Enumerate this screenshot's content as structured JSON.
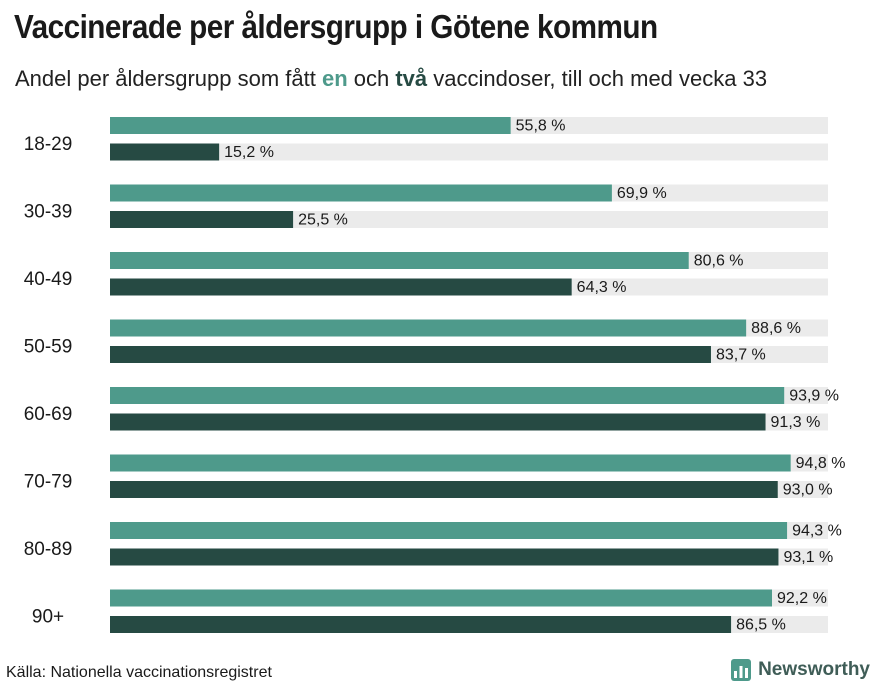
{
  "header": {
    "title": "Vaccinerade per åldersgrupp i Götene kommun",
    "subtitle_before": "Andel per åldersgrupp som fått ",
    "subtitle_one": "en",
    "subtitle_mid": " och ",
    "subtitle_two": "två",
    "subtitle_after": " vaccindoser, till och med vecka 33"
  },
  "footer": {
    "source": "Källa: Nationella vaccinationsregistret",
    "brand": "Newsworthy",
    "brand_icon": "bar-chart-logo-icon"
  },
  "colors": {
    "one_dose": "#4e9a8b",
    "two_doses": "#264a43",
    "track": "#ebebeb"
  },
  "chart_data": {
    "type": "bar",
    "orientation": "horizontal",
    "categories": [
      "18-29",
      "30-39",
      "40-49",
      "50-59",
      "60-69",
      "70-79",
      "80-89",
      "90+"
    ],
    "series": [
      {
        "key": "one_dose",
        "values": [
          55.8,
          69.9,
          80.6,
          88.6,
          93.9,
          94.8,
          94.3,
          92.2
        ],
        "labels": [
          "55,8 %",
          "69,9 %",
          "80,6 %",
          "88,6 %",
          "93,9 %",
          "94,8 %",
          "94,3 %",
          "92,2 %"
        ]
      },
      {
        "key": "two_doses",
        "values": [
          15.2,
          25.5,
          64.3,
          83.7,
          91.3,
          93.0,
          93.1,
          86.5
        ],
        "labels": [
          "15,2 %",
          "25,5 %",
          "64,3 %",
          "83,7 %",
          "91,3 %",
          "93,0 %",
          "93,1 %",
          "86,5 %"
        ]
      }
    ],
    "xlim": [
      0,
      100
    ],
    "grid": false,
    "legend": "in subtitle"
  }
}
